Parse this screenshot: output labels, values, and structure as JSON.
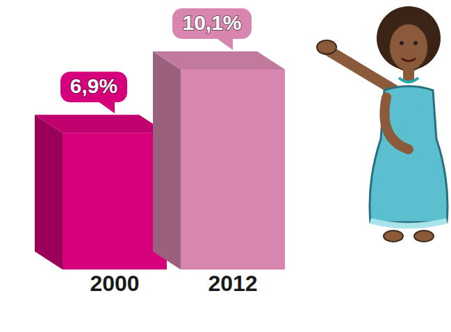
{
  "chart_data": {
    "type": "bar",
    "categories": [
      "2000",
      "2012"
    ],
    "values": [
      6.9,
      10.1
    ],
    "value_labels": [
      "6,9%",
      "10,1%"
    ],
    "colors": [
      "#d6007c",
      "#d886b0"
    ],
    "data_labels": true,
    "tick_labels": "x",
    "grid": false
  }
}
